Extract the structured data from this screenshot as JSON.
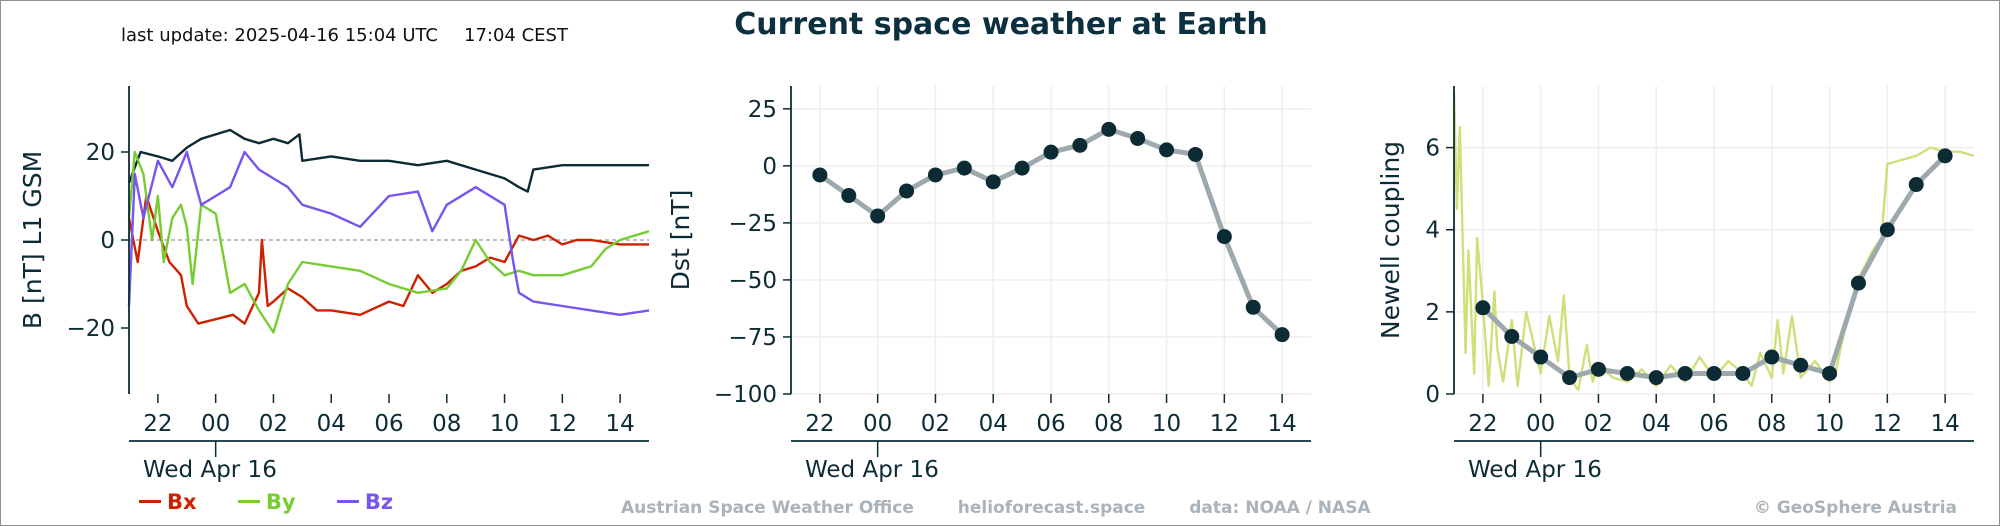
{
  "header": {
    "last_update": "last update: 2025-04-16 15:04 UTC",
    "local_time": "17:04 CEST",
    "title": "Current space weather at Earth"
  },
  "footer": {
    "office": "Austrian Space Weather Office",
    "site": "helioforecast.space",
    "data_source": "data: NOAA / NASA",
    "copyright": "© GeoSphere Austria"
  },
  "colors": {
    "bx": "#cc2200",
    "by": "#77cc33",
    "bz": "#7755ee",
    "btot": "#0d2b35",
    "dst_line": "#9ea9ad",
    "marker": "#0d2b35",
    "newell_raw": "#cfe07a",
    "grid": "#eeeeee"
  },
  "legend": [
    {
      "label": "Bx",
      "color_key": "bx"
    },
    {
      "label": "By",
      "color_key": "by"
    },
    {
      "label": "Bz",
      "color_key": "bz"
    }
  ],
  "chart_data": [
    {
      "type": "line",
      "ylabel": "B [nT] L1 GSM",
      "xlabel": "",
      "date_label": "Wed Apr 16",
      "x_ticks": [
        "22",
        "00",
        "02",
        "04",
        "06",
        "08",
        "10",
        "12",
        "14"
      ],
      "y_ticks": [
        "20",
        "0",
        "−20"
      ],
      "x_range_hours": [
        -3,
        15
      ],
      "ylim": [
        -35,
        35
      ],
      "zero_line": true,
      "grid": false,
      "series": [
        {
          "name": "Bt",
          "color_key": "btot",
          "x": [
            -3,
            -2.6,
            -2,
            -1.5,
            -1,
            -0.5,
            0,
            0.5,
            1,
            1.5,
            2,
            2.5,
            2.9,
            3,
            4,
            5,
            6,
            7,
            8,
            9,
            10,
            10.5,
            10.8,
            11,
            12,
            13,
            14,
            14.5,
            15
          ],
          "y": [
            13,
            20,
            19,
            18,
            21,
            23,
            24,
            25,
            23,
            22,
            23,
            22,
            24,
            18,
            19,
            18,
            18,
            17,
            18,
            16,
            14,
            12,
            11,
            16,
            17,
            17,
            17,
            17,
            17
          ]
        },
        {
          "name": "Bx",
          "color_key": "bx",
          "x": [
            -3,
            -2.7,
            -2.4,
            -2,
            -1.6,
            -1.2,
            -1,
            -0.6,
            0,
            0.6,
            1,
            1.5,
            1.6,
            1.8,
            2,
            2.5,
            3,
            3.5,
            4,
            5,
            6,
            6.5,
            7,
            7.5,
            8,
            8.5,
            9,
            9.5,
            10,
            10.5,
            11,
            11.5,
            12,
            12.5,
            13,
            14,
            15
          ],
          "y": [
            5,
            -5,
            10,
            2,
            -5,
            -8,
            -15,
            -19,
            -18,
            -17,
            -19,
            -12,
            0,
            -15,
            -14,
            -11,
            -13,
            -16,
            -16,
            -17,
            -14,
            -15,
            -8,
            -12,
            -10,
            -7,
            -6,
            -4,
            -5,
            1,
            0,
            1,
            -1,
            0,
            0,
            -1,
            -1
          ]
        },
        {
          "name": "By",
          "color_key": "by",
          "x": [
            -3,
            -2.8,
            -2.5,
            -2.2,
            -2,
            -1.8,
            -1.5,
            -1.2,
            -1,
            -0.8,
            -0.5,
            0,
            0.5,
            1,
            1.5,
            2,
            2.5,
            3,
            4,
            5,
            6,
            7,
            8,
            8.5,
            9,
            9.5,
            10,
            10.5,
            11,
            12,
            13,
            13.5,
            14,
            15
          ],
          "y": [
            5,
            20,
            15,
            0,
            10,
            -5,
            5,
            8,
            3,
            -10,
            8,
            6,
            -12,
            -10,
            -16,
            -21,
            -10,
            -5,
            -6,
            -7,
            -10,
            -12,
            -11,
            -7,
            0,
            -5,
            -8,
            -7,
            -8,
            -8,
            -6,
            -2,
            0,
            2
          ]
        },
        {
          "name": "Bz",
          "color_key": "bz",
          "x": [
            -3,
            -2.8,
            -2.5,
            -2,
            -1.5,
            -1,
            -0.5,
            0,
            0.5,
            1,
            1.5,
            2,
            2.5,
            3,
            4,
            5,
            6,
            7,
            7.5,
            8,
            9,
            10,
            10.3,
            10.5,
            11,
            12,
            13,
            14,
            15
          ],
          "y": [
            -15,
            15,
            5,
            18,
            12,
            20,
            8,
            10,
            12,
            20,
            16,
            14,
            12,
            8,
            6,
            3,
            10,
            11,
            2,
            8,
            12,
            8,
            -5,
            -12,
            -14,
            -15,
            -16,
            -17,
            -16
          ]
        }
      ]
    },
    {
      "type": "line",
      "ylabel": "Dst [nT]",
      "xlabel": "",
      "date_label": "Wed Apr 16",
      "x_ticks": [
        "22",
        "00",
        "02",
        "04",
        "06",
        "08",
        "10",
        "12",
        "14"
      ],
      "y_ticks": [
        "25",
        "0",
        "−25",
        "−50",
        "−75",
        "−100"
      ],
      "x_range_hours": [
        -3,
        15
      ],
      "ylim": [
        -100,
        35
      ],
      "grid": true,
      "series": [
        {
          "name": "Dst",
          "color_key": "dst_line",
          "x": [
            -2,
            -1,
            0,
            1,
            2,
            3,
            4,
            5,
            6,
            7,
            8,
            9,
            10,
            11,
            12,
            13,
            14
          ],
          "y": [
            -4,
            -13,
            -22,
            -11,
            -4,
            -1,
            -7,
            -1,
            6,
            9,
            16,
            12,
            7,
            5,
            -31,
            -62,
            -74
          ]
        }
      ]
    },
    {
      "type": "line",
      "ylabel": "Newell coupling",
      "xlabel": "",
      "date_label": "Wed Apr 16",
      "x_ticks": [
        "22",
        "00",
        "02",
        "04",
        "06",
        "08",
        "10",
        "12",
        "14"
      ],
      "y_ticks": [
        "6",
        "4",
        "2",
        "0"
      ],
      "x_range_hours": [
        -3,
        15
      ],
      "ylim": [
        0,
        7.5
      ],
      "grid": true,
      "series": [
        {
          "name": "Newell raw",
          "color_key": "newell_raw",
          "x": [
            -3,
            -2.9,
            -2.8,
            -2.6,
            -2.5,
            -2.3,
            -2.2,
            -2,
            -1.8,
            -1.6,
            -1.5,
            -1.3,
            -1,
            -0.8,
            -0.5,
            -0.2,
            0,
            0.3,
            0.6,
            0.8,
            1,
            1.3,
            1.6,
            1.8,
            2,
            2.5,
            3,
            3.5,
            4,
            4.5,
            5,
            5.5,
            6,
            6.5,
            7,
            7.3,
            7.6,
            8,
            8.2,
            8.4,
            8.7,
            9,
            9.5,
            10,
            10.2,
            10.5,
            10.8,
            11,
            11.5,
            11.8,
            12,
            12.5,
            13,
            13.5,
            14,
            14.5,
            15
          ],
          "y": [
            7.4,
            4.5,
            6.5,
            1,
            3.5,
            0.5,
            3.8,
            2.2,
            0.2,
            2.5,
            1.1,
            0.3,
            1.8,
            0.2,
            2,
            1.1,
            0.5,
            1.9,
            0.8,
            2.4,
            0.4,
            0.1,
            1.2,
            0.3,
            0.7,
            0.4,
            0.3,
            0.6,
            0.2,
            0.7,
            0.3,
            0.9,
            0.4,
            0.8,
            0.5,
            0.2,
            1,
            0.4,
            1.8,
            0.5,
            1.9,
            0.4,
            0.8,
            0.3,
            0.5,
            1.5,
            2.2,
            2.8,
            3.5,
            3.8,
            5.6,
            5.7,
            5.8,
            6,
            5.9,
            5.9,
            5.8
          ]
        },
        {
          "name": "Newell hourly",
          "color_key": "dst_line",
          "x": [
            -2,
            -1,
            0,
            1,
            2,
            3,
            4,
            5,
            6,
            7,
            8,
            9,
            10,
            11,
            12,
            13,
            14
          ],
          "y": [
            2.1,
            1.4,
            0.9,
            0.4,
            0.6,
            0.5,
            0.4,
            0.5,
            0.5,
            0.5,
            0.9,
            0.7,
            0.5,
            2.7,
            4.0,
            5.1,
            5.8
          ]
        }
      ]
    }
  ]
}
